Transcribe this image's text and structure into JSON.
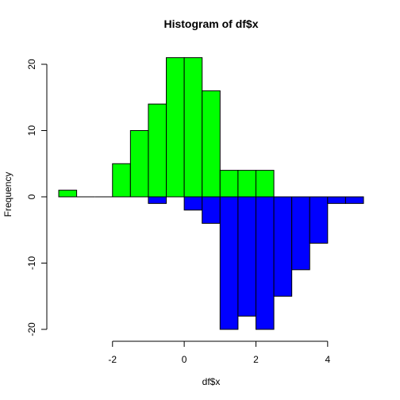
{
  "chart_data": {
    "type": "bar",
    "title": "Histogram of df$x",
    "xlabel": "df$x",
    "ylabel": "Frequency",
    "xlim": [
      -3.5,
      5.0
    ],
    "ylim": [
      -20,
      21
    ],
    "bin_width": 0.5,
    "x_ticks": [
      -2,
      0,
      2,
      4
    ],
    "y_ticks": [
      -20,
      -10,
      0,
      10,
      20
    ],
    "series": [
      {
        "color": "#00ff00",
        "bins": [
          {
            "x0": -3.5,
            "x1": -3.0,
            "value": 1
          },
          {
            "x0": -3.0,
            "x1": -2.5,
            "value": 0
          },
          {
            "x0": -2.5,
            "x1": -2.0,
            "value": 0
          },
          {
            "x0": -2.0,
            "x1": -1.5,
            "value": 5
          },
          {
            "x0": -1.5,
            "x1": -1.0,
            "value": 10
          },
          {
            "x0": -1.0,
            "x1": -0.5,
            "value": 14
          },
          {
            "x0": -0.5,
            "x1": 0.0,
            "value": 21
          },
          {
            "x0": 0.0,
            "x1": 0.5,
            "value": 21
          },
          {
            "x0": 0.5,
            "x1": 1.0,
            "value": 16
          },
          {
            "x0": 1.0,
            "x1": 1.5,
            "value": 4
          },
          {
            "x0": 1.5,
            "x1": 2.0,
            "value": 4
          },
          {
            "x0": 2.0,
            "x1": 2.5,
            "value": 4
          }
        ]
      },
      {
        "color": "#0000ff",
        "bins": [
          {
            "x0": -1.0,
            "x1": -0.5,
            "value": -1
          },
          {
            "x0": -0.5,
            "x1": 0.0,
            "value": 0
          },
          {
            "x0": 0.0,
            "x1": 0.5,
            "value": -2
          },
          {
            "x0": 0.5,
            "x1": 1.0,
            "value": -4
          },
          {
            "x0": 1.0,
            "x1": 1.5,
            "value": -20
          },
          {
            "x0": 1.5,
            "x1": 2.0,
            "value": -18
          },
          {
            "x0": 2.0,
            "x1": 2.5,
            "value": -20
          },
          {
            "x0": 2.5,
            "x1": 3.0,
            "value": -15
          },
          {
            "x0": 3.0,
            "x1": 3.5,
            "value": -11
          },
          {
            "x0": 3.5,
            "x1": 4.0,
            "value": -7
          },
          {
            "x0": 4.0,
            "x1": 4.5,
            "value": -1
          },
          {
            "x0": 4.5,
            "x1": 5.0,
            "value": -1
          }
        ]
      }
    ]
  }
}
